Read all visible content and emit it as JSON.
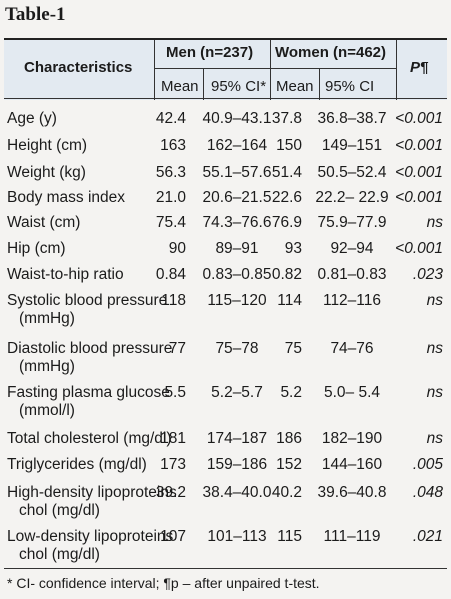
{
  "table": {
    "caption": "Table-1",
    "headers": {
      "characteristics": "Characteristics",
      "men": "Men (n=237)",
      "women": "Women (n=462)",
      "p": "P¶",
      "mean": "Mean",
      "ci_men": "95% CI*",
      "ci_women": "95% CI"
    },
    "rows": [
      {
        "label": "Age (y)",
        "label2": "",
        "men_mean": "42.4",
        "men_ci": "40.9–43.1",
        "women_mean": "37.8",
        "women_ci": "36.8–38.7",
        "p": "<0.001"
      },
      {
        "label": "Height (cm)",
        "label2": "",
        "men_mean": "163",
        "men_ci": "162–164",
        "women_mean": "150",
        "women_ci": "149–151",
        "p": "<0.001"
      },
      {
        "label": "Weight (kg)",
        "label2": "",
        "men_mean": "56.3",
        "men_ci": "55.1–57.6",
        "women_mean": "51.4",
        "women_ci": "50.5–52.4",
        "p": "<0.001"
      },
      {
        "label": "Body mass index",
        "label2": "",
        "men_mean": "21.0",
        "men_ci": "20.6–21.5",
        "women_mean": "22.6",
        "women_ci": "22.2– 22.9",
        "p": "<0.001"
      },
      {
        "label": "Waist (cm)",
        "label2": "",
        "men_mean": "75.4",
        "men_ci": "74.3–76.6",
        "women_mean": "76.9",
        "women_ci": "75.9–77.9",
        "p": "ns"
      },
      {
        "label": "Hip (cm)",
        "label2": "",
        "men_mean": "90",
        "men_ci": "89–91",
        "women_mean": "93",
        "women_ci": "92–94",
        "p": "<0.001"
      },
      {
        "label": "Waist-to-hip ratio",
        "label2": "",
        "men_mean": "0.84",
        "men_ci": "0.83–0.85",
        "women_mean": "0.82",
        "women_ci": "0.81–0.83",
        "p": ".023"
      },
      {
        "label": "Systolic blood pressure",
        "label2": "(mmHg)",
        "men_mean": "118",
        "men_ci": "115–120",
        "women_mean": "114",
        "women_ci": "112–116",
        "p": "ns"
      },
      {
        "label": "Diastolic blood pressure",
        "label2": "(mmHg)",
        "men_mean": "77",
        "men_ci": "75–78",
        "women_mean": "75",
        "women_ci": "74–76",
        "p": "ns"
      },
      {
        "label": "Fasting plasma glucose",
        "label2": "(mmol/l)",
        "men_mean": "5.5",
        "men_ci": "5.2–5.7",
        "women_mean": "5.2",
        "women_ci": "5.0– 5.4",
        "p": "ns"
      },
      {
        "label": "Total cholesterol (mg/dl)",
        "label2": "",
        "men_mean": "181",
        "men_ci": "174–187",
        "women_mean": "186",
        "women_ci": "182–190",
        "p": "ns"
      },
      {
        "label": "Triglycerides (mg/dl)",
        "label2": "",
        "men_mean": "173",
        "men_ci": "159–186",
        "women_mean": "152",
        "women_ci": "144–160",
        "p": ".005"
      },
      {
        "label": "High-density lipoproteins",
        "label2": "chol (mg/dl)",
        "men_mean": "39.2",
        "men_ci": "38.4–40.0",
        "women_mean": "40.2",
        "women_ci": "39.6–40.8",
        "p": ".048"
      },
      {
        "label": "Low-density lipoproteins",
        "label2": "chol (mg/dl)",
        "men_mean": "107",
        "men_ci": "101–113",
        "women_mean": "115",
        "women_ci": "111–119",
        "p": ".021"
      }
    ],
    "footnote": "* CI- confidence interval; ¶p – after unpaired t-test."
  }
}
